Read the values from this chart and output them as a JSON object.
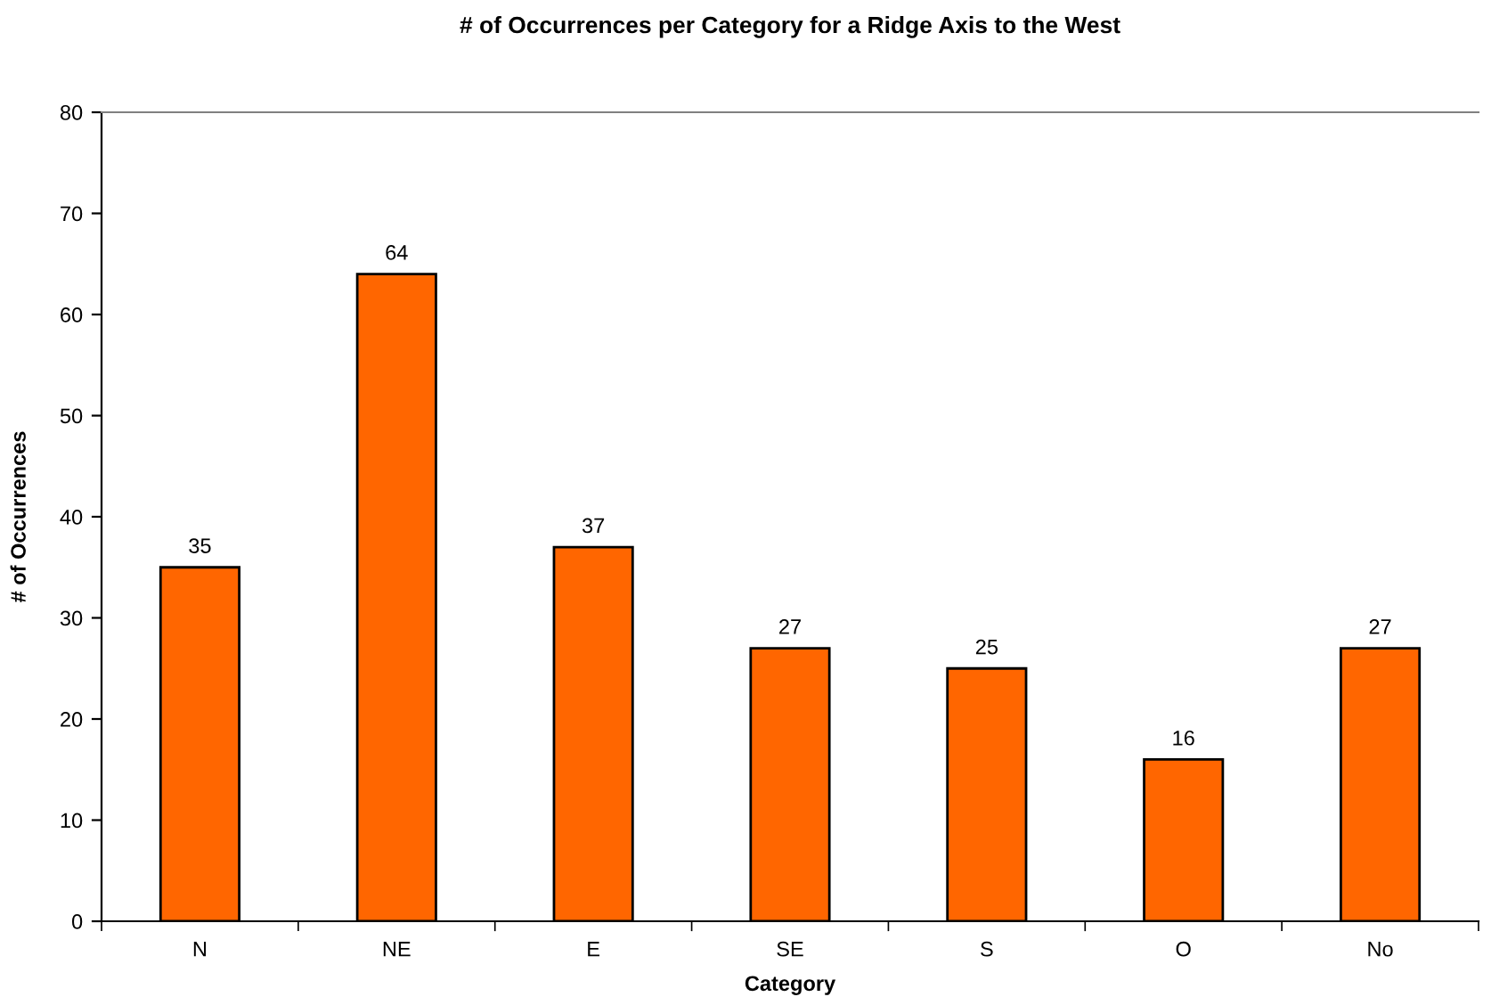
{
  "chart_data": {
    "type": "bar",
    "title": "# of Occurrences per Category for a Ridge Axis to the West",
    "xlabel": "Category",
    "ylabel": "# of Occurrences",
    "categories": [
      "N",
      "NE",
      "E",
      "SE",
      "S",
      "O",
      "No"
    ],
    "values": [
      35,
      64,
      37,
      27,
      25,
      16,
      27
    ],
    "color": "#ff6600",
    "ylim": [
      0,
      80
    ],
    "yticks": [
      0,
      10,
      20,
      30,
      40,
      50,
      60,
      70,
      80
    ],
    "grid": false,
    "legend": false,
    "data_labels": true
  }
}
